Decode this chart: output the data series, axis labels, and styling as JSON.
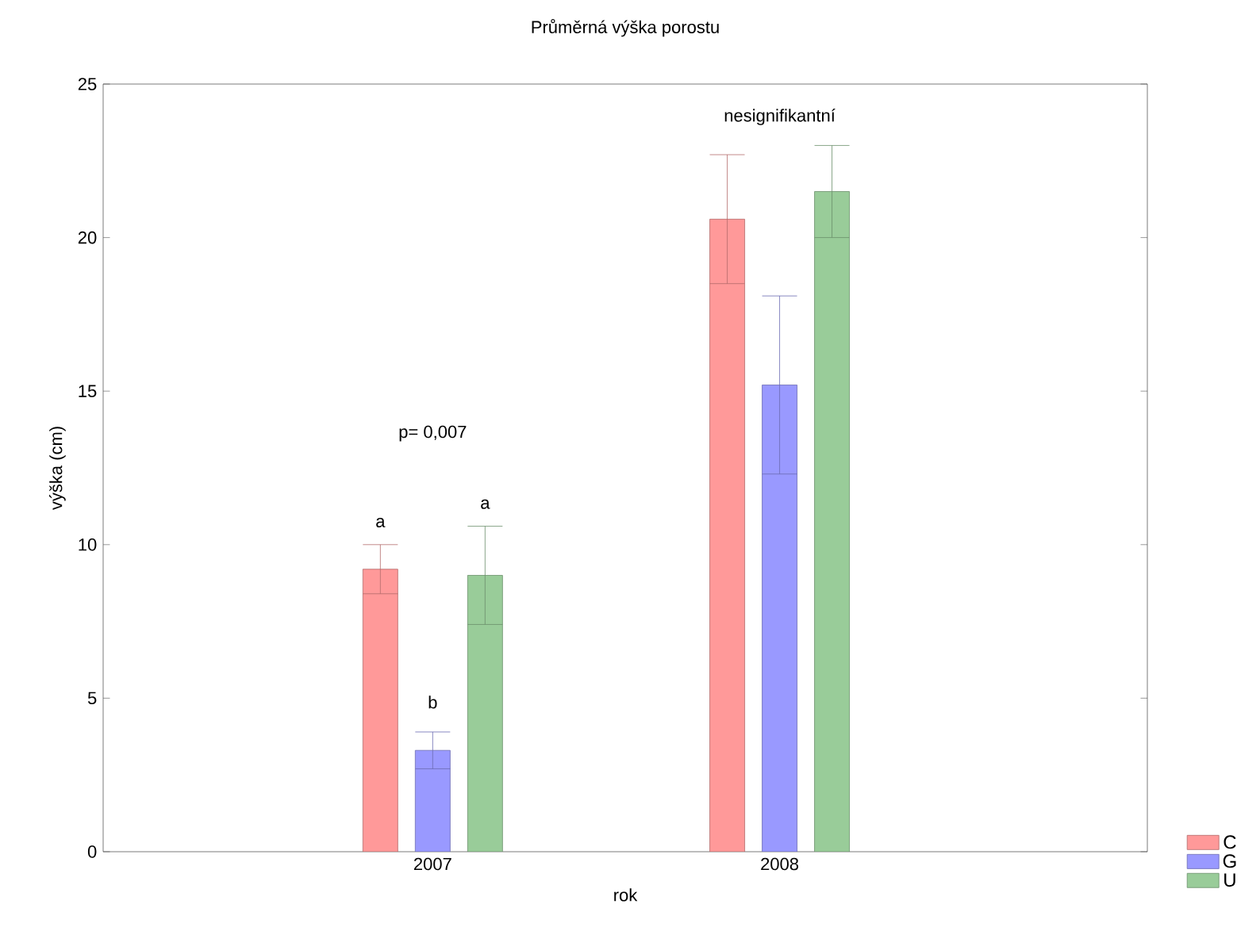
{
  "chart_data": {
    "type": "bar",
    "title": "Průměrná výška porostu",
    "xlabel": "rok",
    "ylabel": "výška (cm)",
    "categories": [
      "2007",
      "2008"
    ],
    "series": [
      {
        "name": "C",
        "color": "#ff9999",
        "values": [
          9.2,
          20.6
        ],
        "errors": [
          0.8,
          2.1
        ]
      },
      {
        "name": "G",
        "color": "#9999ff",
        "values": [
          3.3,
          15.2
        ],
        "errors": [
          0.6,
          2.9
        ]
      },
      {
        "name": "U",
        "color": "#99cc99",
        "values": [
          9.0,
          21.5
        ],
        "errors": [
          1.6,
          1.5
        ]
      }
    ],
    "ylim": [
      0,
      25
    ],
    "yticks": [
      0,
      5,
      10,
      15,
      20,
      25
    ],
    "grid": false,
    "legend": "bottom right",
    "annotations": [
      "a",
      "b",
      "a",
      "p= 0,007",
      "nesignifikantní"
    ]
  }
}
